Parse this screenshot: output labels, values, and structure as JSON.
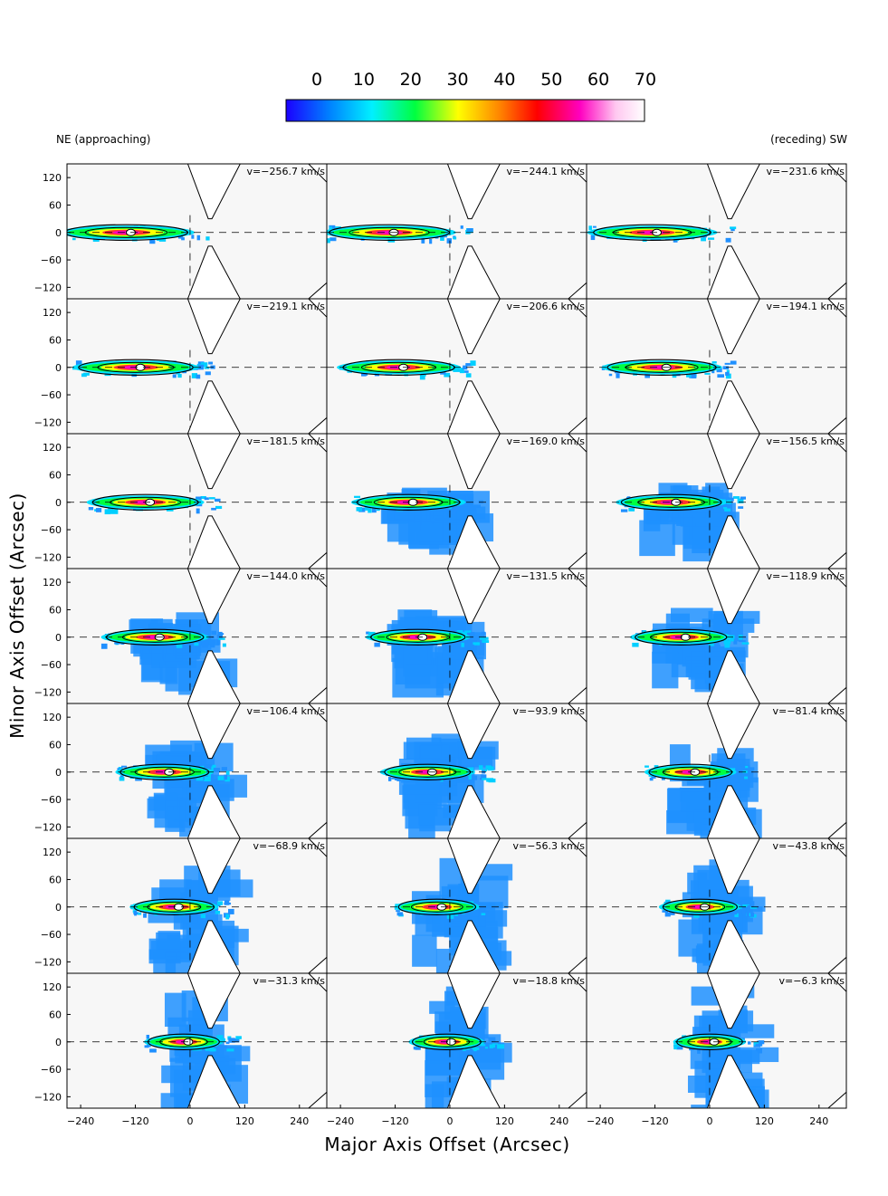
{
  "chart_data": {
    "type": "heatmap",
    "colorbar": {
      "ticks": [
        "0",
        "10",
        "20",
        "30",
        "40",
        "50",
        "60",
        "70"
      ],
      "range": [
        0,
        70
      ],
      "colors": [
        "#1b00ff",
        "#0080ff",
        "#00f0ff",
        "#00ff40",
        "#ffff00",
        "#ff8000",
        "#ff0000",
        "#ff00c0",
        "#ffc8f0",
        "#ffffff"
      ]
    },
    "corner_left": "NE (approaching)",
    "corner_right": "(receding) SW",
    "xlabel": "Major Axis Offset (Arcsec)",
    "ylabel": "Minor Axis Offset (Arcsec)",
    "x_ticks": [
      "−240",
      "−120",
      "0",
      "120",
      "240"
    ],
    "x_tick_values": [
      -240,
      -120,
      0,
      120,
      240
    ],
    "y_ticks": [
      "120",
      "60",
      "0",
      "−60",
      "−120"
    ],
    "y_tick_values": [
      120,
      60,
      0,
      -60,
      -120
    ],
    "xlim": [
      -270,
      300
    ],
    "ylim": [
      -145,
      150
    ],
    "grid": {
      "rows": 7,
      "cols": 3
    },
    "panels": [
      {
        "label": "v=−256.7 km/s",
        "velocity": -256.7
      },
      {
        "label": "v=−244.1 km/s",
        "velocity": -244.1
      },
      {
        "label": "v=−231.6 km/s",
        "velocity": -231.6
      },
      {
        "label": "v=−219.1 km/s",
        "velocity": -219.1
      },
      {
        "label": "v=−206.6 km/s",
        "velocity": -206.6
      },
      {
        "label": "v=−194.1 km/s",
        "velocity": -194.1
      },
      {
        "label": "v=−181.5 km/s",
        "velocity": -181.5
      },
      {
        "label": "v=−169.0 km/s",
        "velocity": -169.0
      },
      {
        "label": "v=−156.5 km/s",
        "velocity": -156.5
      },
      {
        "label": "v=−144.0 km/s",
        "velocity": -144.0
      },
      {
        "label": "v=−131.5 km/s",
        "velocity": -131.5
      },
      {
        "label": "v=−118.9 km/s",
        "velocity": -118.9
      },
      {
        "label": "v=−106.4 km/s",
        "velocity": -106.4
      },
      {
        "label": "v=−93.9 km/s",
        "velocity": -93.9
      },
      {
        "label": "v=−81.4 km/s",
        "velocity": -81.4
      },
      {
        "label": "v=−68.9 km/s",
        "velocity": -68.9
      },
      {
        "label": "v=−56.3 km/s",
        "velocity": -56.3
      },
      {
        "label": "v=−43.8 km/s",
        "velocity": -43.8
      },
      {
        "label": "v=−31.3 km/s",
        "velocity": -31.3
      },
      {
        "label": "v=−18.8 km/s",
        "velocity": -18.8
      },
      {
        "label": "v=−6.3 km/s",
        "velocity": -6.3
      }
    ]
  }
}
